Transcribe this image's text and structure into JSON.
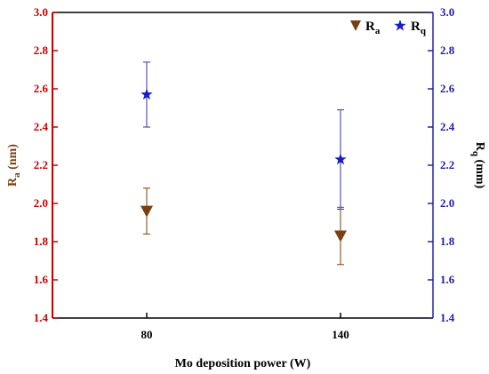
{
  "chart_data": {
    "type": "scatter",
    "xlabel": "Mo deposition power (W)",
    "categories": [
      "80",
      "140"
    ],
    "left_axis": {
      "label_main": "R",
      "label_sub": "a",
      "label_unit": " (nm)",
      "ylim": [
        1.4,
        3.0
      ],
      "ticks": [
        "1.4",
        "1.6",
        "1.8",
        "2.0",
        "2.2",
        "2.4",
        "2.6",
        "2.8",
        "3.0"
      ],
      "color": "#cc0000"
    },
    "right_axis": {
      "label_main": "R",
      "label_sub": "q",
      "label_unit": " (mm)",
      "ylim": [
        1.4,
        3.0
      ],
      "ticks": [
        "1.4",
        "1.6",
        "1.8",
        "2.0",
        "2.2",
        "2.4",
        "2.6",
        "2.8",
        "3.0"
      ],
      "color": "#2222aa"
    },
    "series": [
      {
        "legend_main": "R",
        "legend_sub": "a",
        "marker": "triangle-down",
        "color": "#7b3f10",
        "axis": "left",
        "values": [
          1.96,
          1.83
        ],
        "errors": [
          0.12,
          0.15
        ]
      },
      {
        "legend_main": "R",
        "legend_sub": "q",
        "marker": "star",
        "color": "#1a1acc",
        "axis": "right",
        "values": [
          2.57,
          2.23
        ],
        "errors": [
          0.17,
          0.26
        ]
      }
    ],
    "legend_position": "top-right",
    "grid": false
  }
}
